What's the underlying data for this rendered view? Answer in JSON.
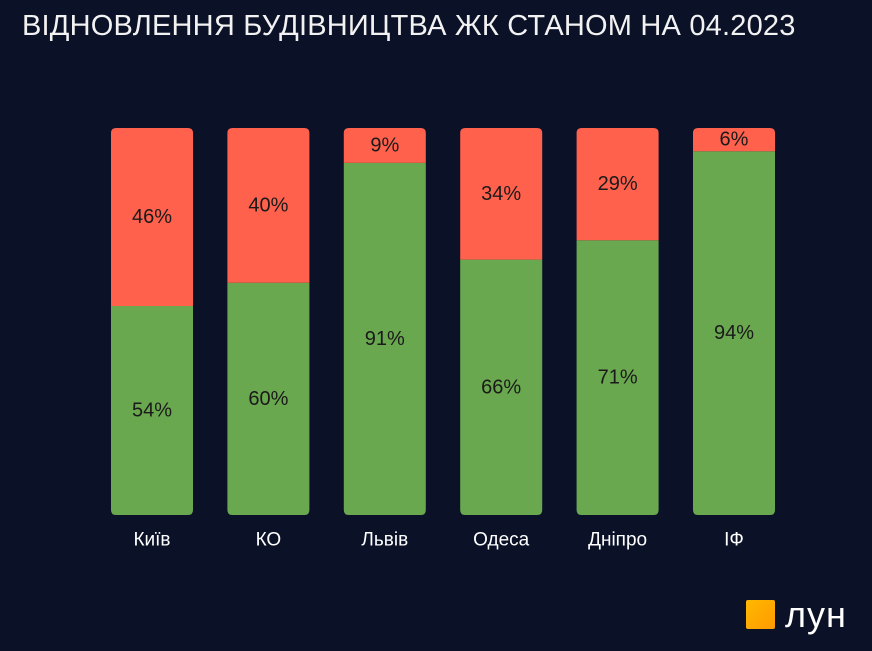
{
  "title": "ВІДНОВЛЕННЯ БУДІВНИЦТВА ЖК СТАНОМ НА 04.2023",
  "logo": {
    "text": "лун"
  },
  "colors": {
    "background": "#0b1228",
    "restored": "#6aa84f",
    "not_restored": "#ff614d",
    "label_text": "#1a1a1a",
    "category_text": "#ffffff"
  },
  "chart_data": {
    "type": "bar",
    "stacked": true,
    "percent": true,
    "title": "ВІДНОВЛЕННЯ БУДІВНИЦТВА ЖК СТАНОМ НА 04.2023",
    "xlabel": "",
    "ylabel": "",
    "ylim": [
      0,
      100
    ],
    "grid": false,
    "legend": "none",
    "categories": [
      "Київ",
      "КО",
      "Львів",
      "Одеса",
      "Дніпро",
      "ІФ"
    ],
    "series": [
      {
        "values": [
          54,
          60,
          91,
          66,
          71,
          94
        ],
        "labels": [
          "54%",
          "60%",
          "91%",
          "66%",
          "71%",
          "94%"
        ],
        "color": "#6aa84f"
      },
      {
        "values": [
          46,
          40,
          9,
          34,
          29,
          6
        ],
        "labels": [
          "46%",
          "40%",
          "9%",
          "34%",
          "29%",
          "6%"
        ],
        "color": "#ff614d"
      }
    ]
  }
}
